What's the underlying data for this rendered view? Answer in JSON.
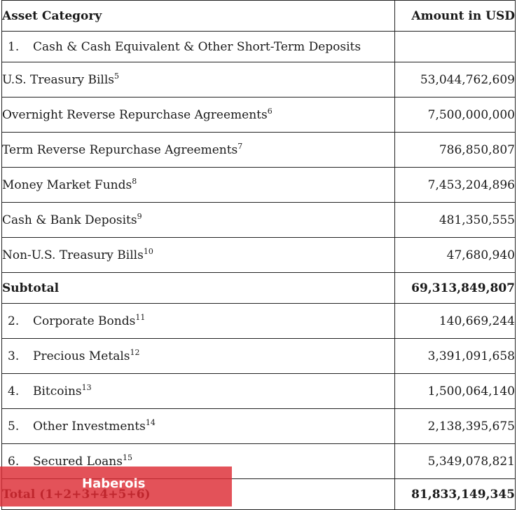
{
  "header": {
    "category_label": "Asset Category",
    "amount_label": "Amount in USD"
  },
  "section1": {
    "number": "1.",
    "label": "Cash & Cash Equivalent & Other Short-Term Deposits",
    "items": [
      {
        "label": "U.S. Treasury Bills",
        "footnote": "5",
        "amount": "53,044,762,609"
      },
      {
        "label": "Overnight Reverse Repurchase Agreements",
        "footnote": "6",
        "amount": "7,500,000,000"
      },
      {
        "label": "Term Reverse Repurchase Agreements",
        "footnote": "7",
        "amount": "786,850,807"
      },
      {
        "label": "Money Market Funds",
        "footnote": "8",
        "amount": "7,453,204,896"
      },
      {
        "label": "Cash & Bank Deposits",
        "footnote": "9",
        "amount": "481,350,555"
      },
      {
        "label": "Non-U.S. Treasury Bills",
        "footnote": "10",
        "amount": "47,680,940"
      }
    ]
  },
  "subtotal": {
    "label": "Subtotal",
    "amount": "69,313,849,807"
  },
  "others": [
    {
      "number": "2.",
      "label": "Corporate Bonds",
      "footnote": "11",
      "amount": "140,669,244"
    },
    {
      "number": "3.",
      "label": "Precious Metals",
      "footnote": "12",
      "amount": "3,391,091,658"
    },
    {
      "number": "4.",
      "label": "Bitcoins",
      "footnote": "13",
      "amount": "1,500,064,140"
    },
    {
      "number": "5.",
      "label": "Other Investments",
      "footnote": "14",
      "amount": "2,138,395,675"
    },
    {
      "number": "6.",
      "label": "Secured Loans",
      "footnote": "15",
      "amount": "5,349,078,821"
    }
  ],
  "total": {
    "label": "Total (1+2+3+4+5+6)",
    "amount": "81,833,149,345"
  },
  "watermark": {
    "text": "Haberois",
    "color": "#dd2c34"
  }
}
